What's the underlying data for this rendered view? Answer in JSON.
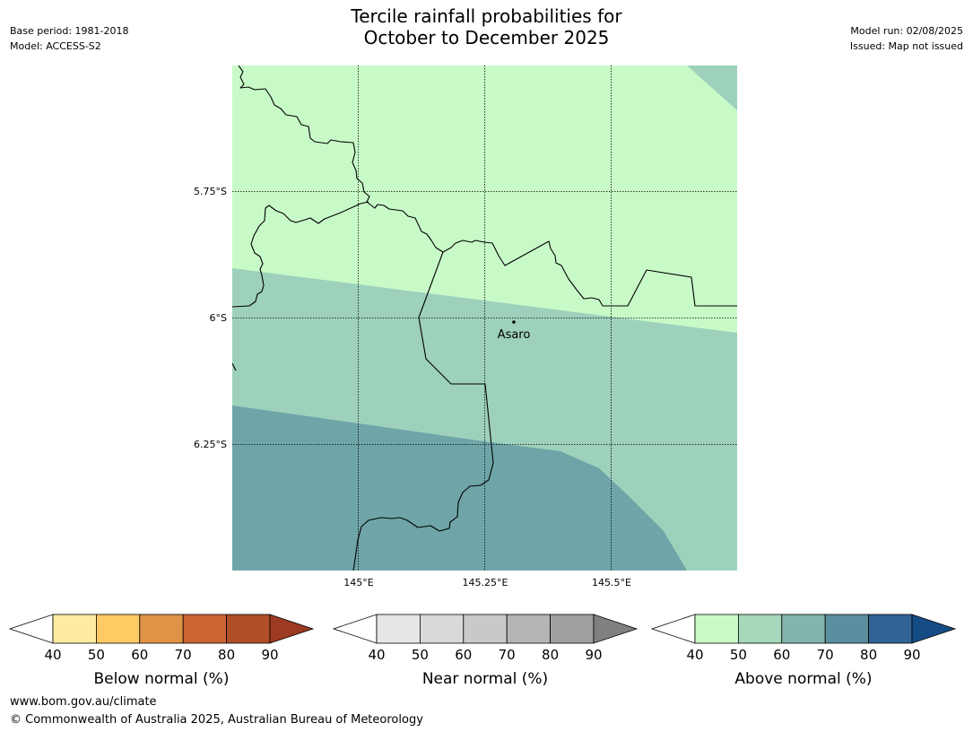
{
  "title": {
    "line1": "Tercile rainfall probabilities for",
    "line2": "October to December 2025"
  },
  "meta": {
    "base_period": "Base period: 1981-2018",
    "model": "Model: ACCESS-S2",
    "model_run": "Model run: 02/08/2025",
    "issued": "Issued: Map not issued"
  },
  "map": {
    "lat_labels": [
      "5.75°S",
      "6°S",
      "6.25°S"
    ],
    "lon_labels": [
      "145°E",
      "145.25°E",
      "145.5°E"
    ],
    "place": "Asaro",
    "zone_colors": {
      "above_40_50": "#c8fac8",
      "above_50_60": "#9dd1bb",
      "above_60_70": "#6fa5a8"
    }
  },
  "legends": [
    {
      "name": "below",
      "label": "Below normal (%)",
      "ticks": [
        "40",
        "50",
        "60",
        "70",
        "80",
        "90"
      ],
      "low_color": "#ffffff",
      "colors": [
        "#feeca0",
        "#fdca63",
        "#e09345",
        "#cc6434",
        "#b04e28"
      ],
      "high_color": "#9c3a22"
    },
    {
      "name": "near",
      "label": "Near normal (%)",
      "ticks": [
        "40",
        "50",
        "60",
        "70",
        "80",
        "90"
      ],
      "low_color": "#ffffff",
      "colors": [
        "#e6e6e6",
        "#d9d9d9",
        "#c9c9c9",
        "#b5b5b5",
        "#a0a0a0"
      ],
      "high_color": "#808080"
    },
    {
      "name": "above",
      "label": "Above normal (%)",
      "ticks": [
        "40",
        "50",
        "60",
        "70",
        "80",
        "90"
      ],
      "low_color": "#ffffff",
      "colors": [
        "#c8fac8",
        "#a6d9bb",
        "#82b5ab",
        "#5b8fa0",
        "#316395"
      ],
      "high_color": "#164c86"
    }
  ],
  "footer": {
    "website": "www.bom.gov.au/climate",
    "copyright": "© Commonwealth of Australia 2025, Australian Bureau of Meteorology"
  }
}
